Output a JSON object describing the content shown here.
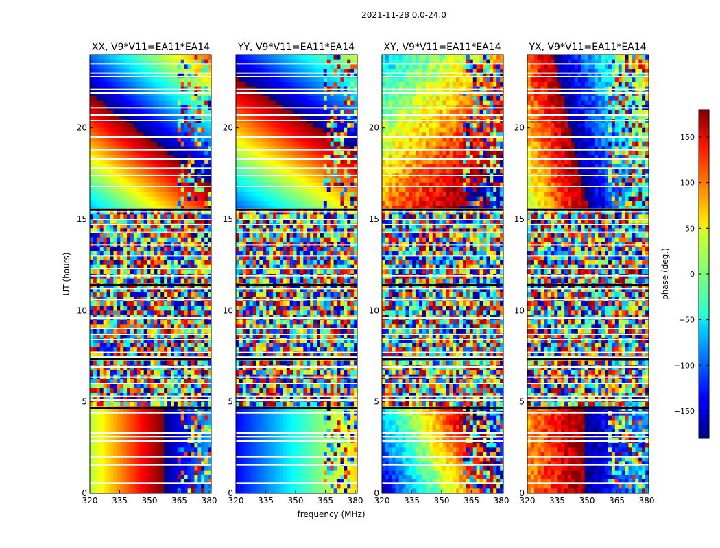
{
  "figure_title": "2021-11-28 0.0-24.0",
  "chart_data": {
    "type": "heatmap",
    "title": "2021-11-28 0.0-24.0",
    "xlabel": "frequency (MHz)",
    "ylabel": "UT (hours)",
    "xlim": [
      320,
      381
    ],
    "ylim": [
      0,
      24
    ],
    "x_ticks": [
      320,
      335,
      350,
      365,
      380
    ],
    "y_ticks": [
      0,
      5,
      10,
      15,
      20
    ],
    "colorbar": {
      "label": "phase (deg.)",
      "colormap": "jet",
      "range": [
        -180,
        180
      ],
      "ticks": [
        150,
        100,
        50,
        0,
        -50,
        -100,
        -150
      ],
      "tick_labels": [
        "150",
        "100",
        "50",
        "0",
        "−50",
        "−100",
        "−150"
      ]
    },
    "panels": [
      {
        "name": "XX",
        "title": "XX, V9*V11=EA11*EA14"
      },
      {
        "name": "YY",
        "title": "YY, V9*V11=EA11*EA14"
      },
      {
        "name": "XY",
        "title": "XY, V9*V11=EA11*EA14"
      },
      {
        "name": "YX",
        "title": "YX, V9*V11=EA11*EA14"
      }
    ],
    "flagged_gaps_hours": [
      0.55,
      1.55,
      2.0,
      2.85,
      3.1,
      3.3,
      4.4,
      4.65,
      5.1,
      5.3,
      6.0,
      6.35,
      6.9,
      7.45,
      7.7,
      8.4,
      8.7,
      9.0,
      9.6,
      10.6,
      11.2,
      11.4,
      11.9,
      12.3,
      13.0,
      13.6,
      14.3,
      14.7,
      15.0,
      15.4,
      15.55,
      16.8,
      17.4,
      17.8,
      18.3,
      18.8,
      19.5,
      20.4,
      20.7,
      21.1,
      21.9,
      22.1,
      22.8,
      23.0,
      23.5
    ]
  }
}
